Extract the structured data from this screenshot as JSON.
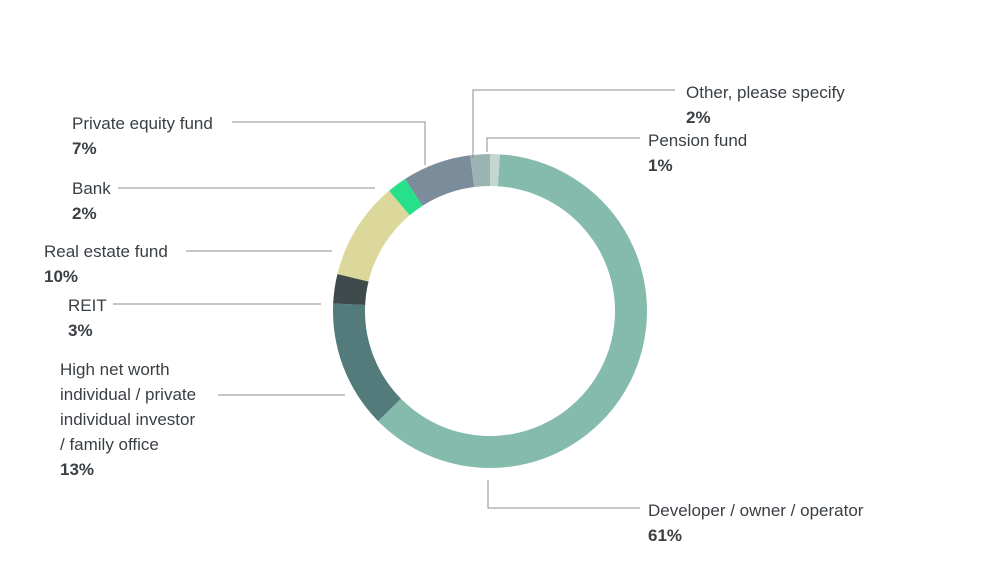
{
  "chart_data": {
    "type": "pie",
    "style": "donut",
    "title": "",
    "slices": [
      {
        "label": "Pension fund",
        "value": 1,
        "value_label": "1%",
        "color": "#c4d6cf"
      },
      {
        "label": "Developer / owner / operator",
        "value": 61,
        "value_label": "61%",
        "color": "#85bbad"
      },
      {
        "label": "High net worth individual / private individual investor / family office",
        "value": 13,
        "value_label": "13%",
        "color": "#537b7b"
      },
      {
        "label": "REIT",
        "value": 3,
        "value_label": "3%",
        "color": "#3e4a4b"
      },
      {
        "label": "Real estate fund",
        "value": 10,
        "value_label": "10%",
        "color": "#dcd89c"
      },
      {
        "label": "Bank",
        "value": 2,
        "value_label": "2%",
        "color": "#27e08a"
      },
      {
        "label": "Private equity fund",
        "value": 7,
        "value_label": "7%",
        "color": "#7b8c9b"
      },
      {
        "label": "Other, please specify",
        "value": 2,
        "value_label": "2%",
        "color": "#9cb3b3"
      }
    ]
  },
  "labels": {
    "pension": {
      "name": "Pension fund",
      "pct": "1%"
    },
    "other": {
      "name": "Other, please specify",
      "pct": "2%"
    },
    "private_equity": {
      "name": "Private equity fund",
      "pct": "7%"
    },
    "bank": {
      "name": "Bank",
      "pct": "2%"
    },
    "real_estate": {
      "name": "Real estate fund",
      "pct": "10%"
    },
    "reit": {
      "name": "REIT",
      "pct": "3%"
    },
    "hnw": {
      "name_lines": [
        "High net worth",
        "individual / private",
        "individual investor",
        "/ family office"
      ],
      "pct": "13%"
    },
    "developer": {
      "name": "Developer / owner / operator",
      "pct": "61%"
    }
  }
}
